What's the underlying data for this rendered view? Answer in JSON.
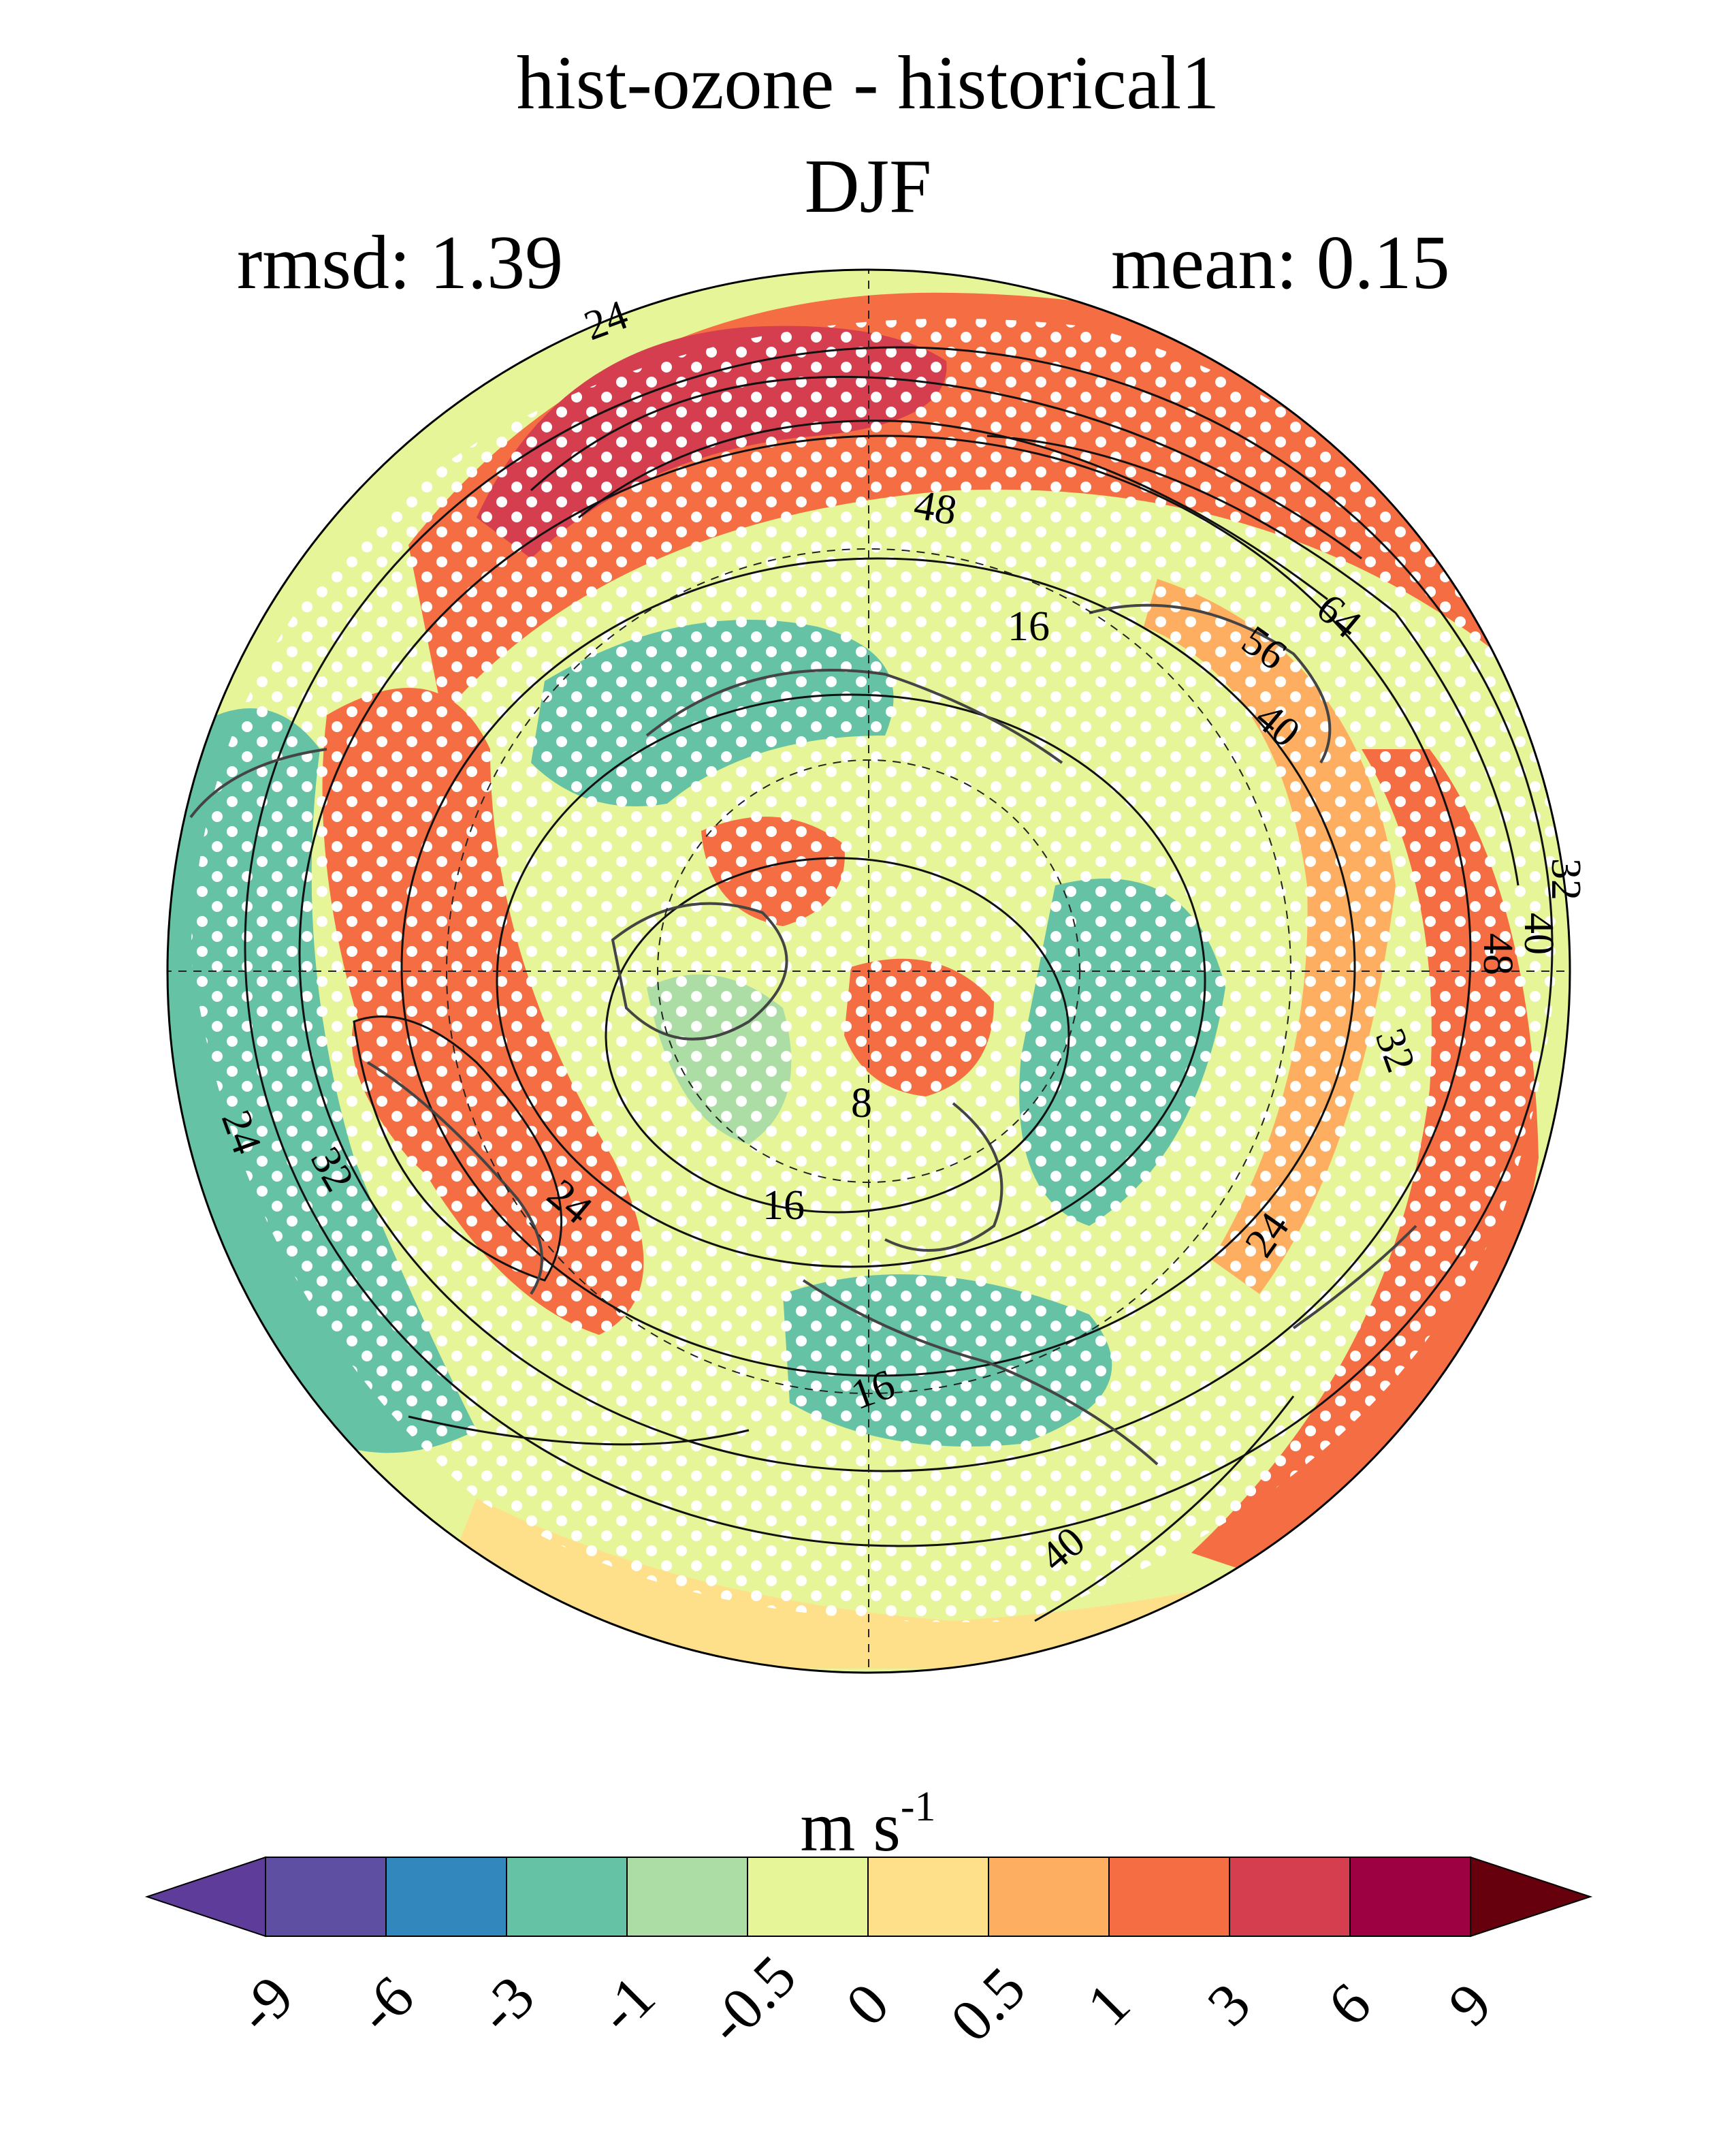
{
  "title": {
    "line1": "hist-ozone - historical1",
    "line2": "DJF"
  },
  "stats": {
    "rmsd": "rmsd: 1.39",
    "mean": "mean: 0.15"
  },
  "map": {
    "projection": "north polar stereographic",
    "stippling": "white dots mark significant differences",
    "contour_labels": [
      "24",
      "48",
      "16",
      "56",
      "64",
      "40",
      "32",
      "40",
      "48",
      "32",
      "8",
      "16",
      "24",
      "24",
      "32",
      "24",
      "16",
      "40"
    ]
  },
  "colorbar": {
    "units_base": "m s",
    "units_exp": "-1",
    "ticks": [
      "-9",
      "-6",
      "-3",
      "-1",
      "-0.5",
      "0",
      "0.5",
      "1",
      "3",
      "6",
      "9"
    ],
    "colors": [
      "#5e4fa2",
      "#3288bd",
      "#66c2a5",
      "#abdda4",
      "#e6f598",
      "#fee08b",
      "#fdae61",
      "#f46d43",
      "#d53e4f",
      "#9e0142"
    ],
    "under_color": "#5e3c99",
    "over_color": "#67000d"
  }
}
